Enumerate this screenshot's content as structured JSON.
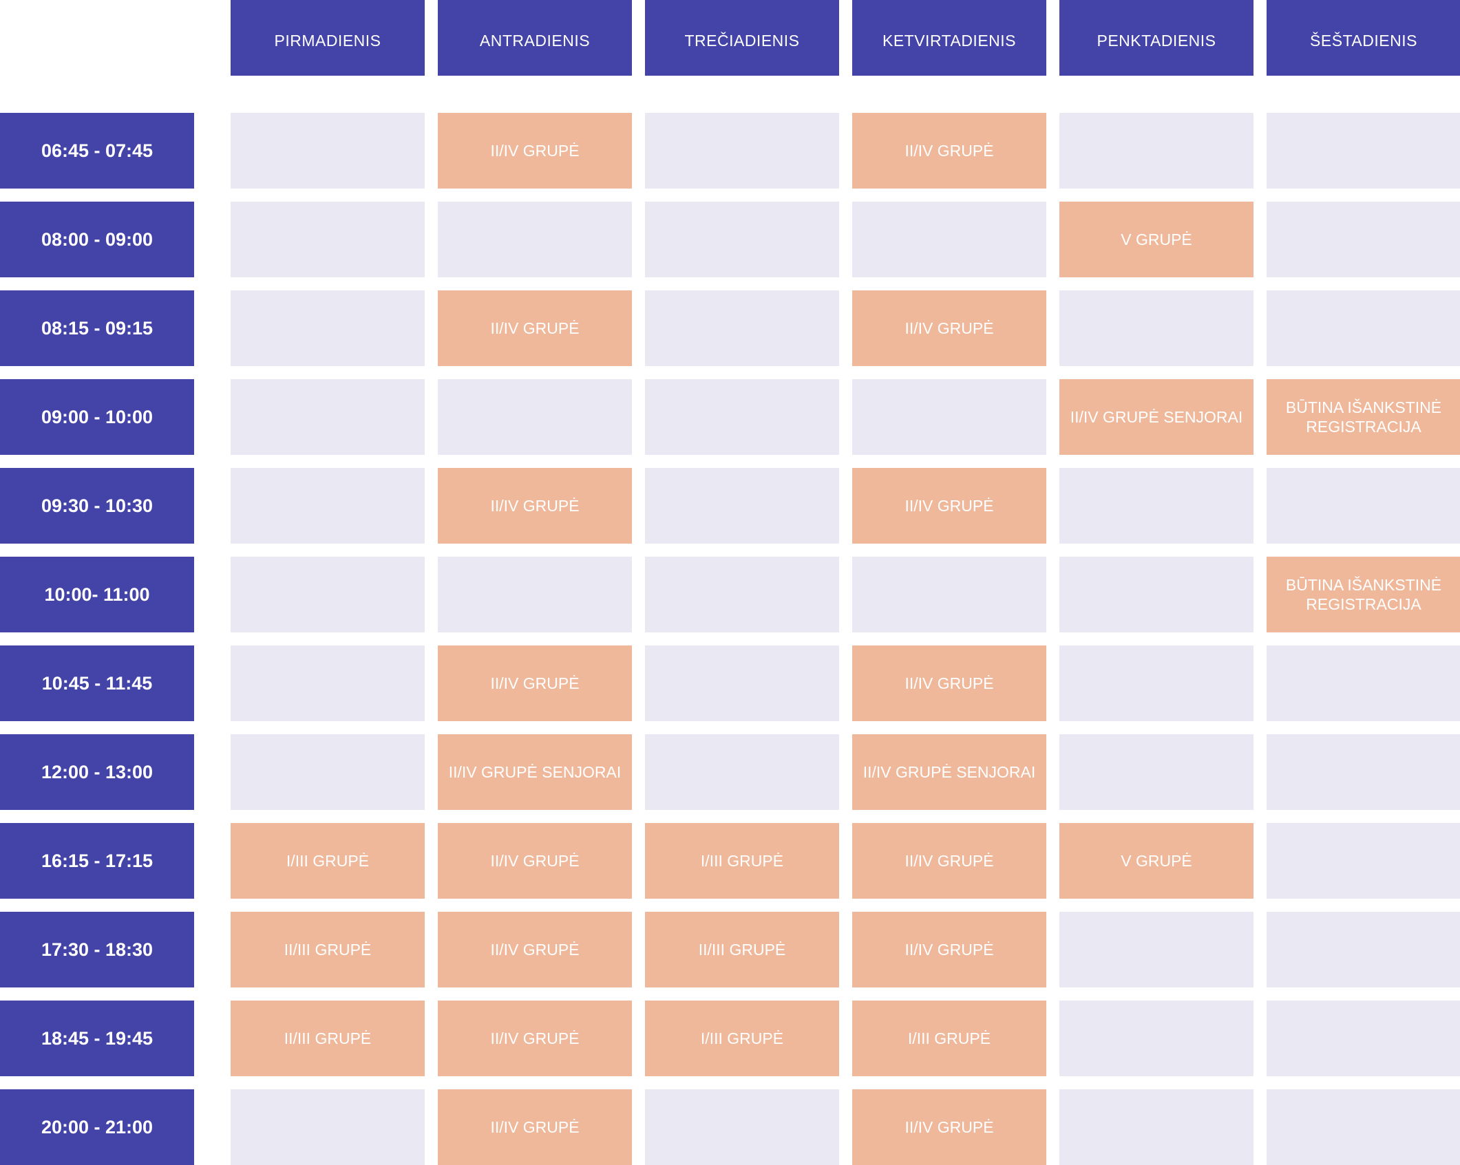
{
  "colors": {
    "header_bg": "#4443a7",
    "time_bg": "#4443a7",
    "empty_cell": "#eae9f3",
    "class_cell": "#efb89b",
    "text": "#ffffff"
  },
  "days": [
    "PIRMADIENIS",
    "ANTRADIENIS",
    "TREČIADIENIS",
    "KETVIRTADIENIS",
    "PENKTADIENIS",
    "ŠEŠTADIENIS"
  ],
  "rows": [
    {
      "time": "06:45 - 07:45",
      "cells": [
        "",
        "II/IV GRUPĖ",
        "",
        "II/IV GRUPĖ",
        "",
        ""
      ]
    },
    {
      "time": "08:00 - 09:00",
      "cells": [
        "",
        "",
        "",
        "",
        "V GRUPĖ",
        ""
      ]
    },
    {
      "time": "08:15 - 09:15",
      "cells": [
        "",
        "II/IV GRUPĖ",
        "",
        "II/IV GRUPĖ",
        "",
        ""
      ]
    },
    {
      "time": "09:00 - 10:00",
      "cells": [
        "",
        "",
        "",
        "",
        "II/IV GRUPĖ SENJORAI",
        "BŪTINA IŠANKSTINĖ REGISTRACIJA"
      ]
    },
    {
      "time": "09:30 - 10:30",
      "cells": [
        "",
        "II/IV GRUPĖ",
        "",
        "II/IV GRUPĖ",
        "",
        ""
      ]
    },
    {
      "time": "10:00- 11:00",
      "cells": [
        "",
        "",
        "",
        "",
        "",
        "BŪTINA IŠANKSTINĖ REGISTRACIJA"
      ]
    },
    {
      "time": "10:45 - 11:45",
      "cells": [
        "",
        "II/IV GRUPĖ",
        "",
        "II/IV GRUPĖ",
        "",
        ""
      ]
    },
    {
      "time": "12:00 - 13:00",
      "cells": [
        "",
        "II/IV GRUPĖ SENJORAI",
        "",
        "II/IV GRUPĖ SENJORAI",
        "",
        ""
      ]
    },
    {
      "time": "16:15 - 17:15",
      "cells": [
        "I/III GRUPĖ",
        "II/IV GRUPĖ",
        "I/III GRUPĖ",
        "II/IV GRUPĖ",
        "V GRUPĖ",
        ""
      ]
    },
    {
      "time": "17:30 - 18:30",
      "cells": [
        "II/III GRUPĖ",
        "II/IV GRUPĖ",
        "II/III GRUPĖ",
        "II/IV GRUPĖ",
        "",
        ""
      ]
    },
    {
      "time": "18:45 - 19:45",
      "cells": [
        "II/III GRUPĖ",
        "II/IV GRUPĖ",
        "I/III GRUPĖ",
        "I/III GRUPĖ",
        "",
        ""
      ]
    },
    {
      "time": "20:00 - 21:00",
      "cells": [
        "",
        "II/IV GRUPĖ",
        "",
        "II/IV GRUPĖ",
        "",
        ""
      ]
    }
  ]
}
